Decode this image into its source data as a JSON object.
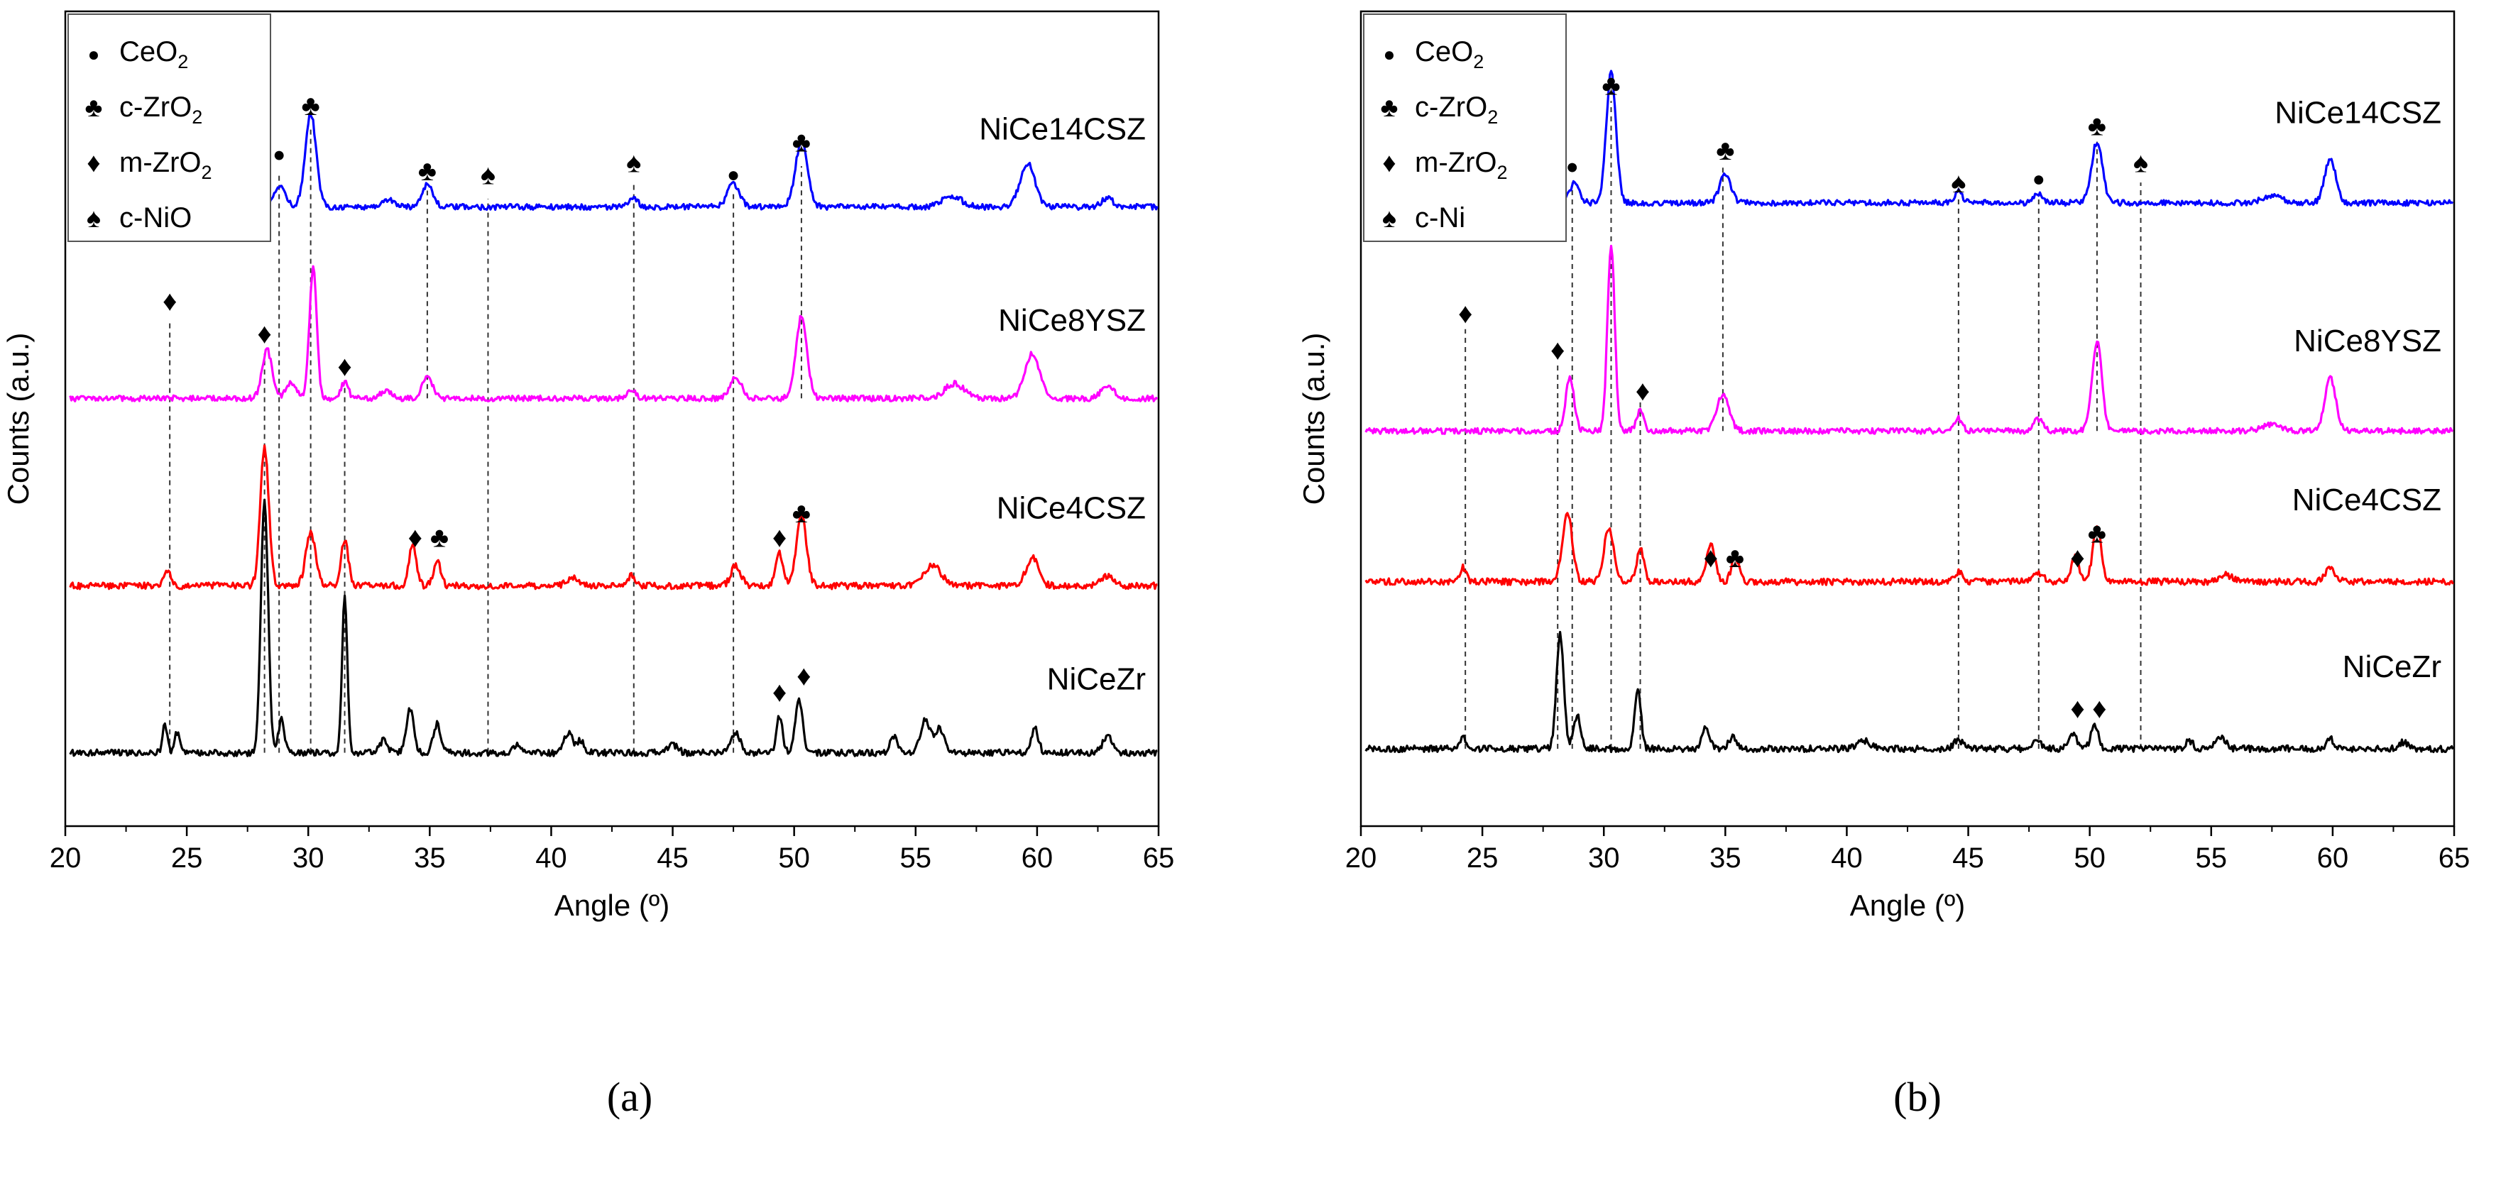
{
  "figure": {
    "panels": [
      {
        "caption": "(a)"
      },
      {
        "caption": "(b)"
      }
    ]
  },
  "chart_data": [
    {
      "type": "line",
      "panel": "(a)",
      "title": "",
      "xlabel": "Angle (º)",
      "ylabel": "Counts (a.u.)",
      "xlim": [
        20,
        65
      ],
      "xticks": [
        20,
        25,
        30,
        35,
        40,
        45,
        50,
        55,
        60,
        65
      ],
      "ylim": [
        0,
        100
      ],
      "yticks_shown": false,
      "grid": false,
      "legend": {
        "position": "top-left",
        "entries": [
          {
            "symbol": "●",
            "label": "CeO",
            "sub": "2"
          },
          {
            "symbol": "♣",
            "label": "c-ZrO",
            "sub": "2"
          },
          {
            "symbol": "♦",
            "label": "m-ZrO",
            "sub": "2"
          },
          {
            "symbol": "♠",
            "label": "c-NiO",
            "sub": ""
          }
        ]
      },
      "series": [
        {
          "name": "NiCe14CSZ",
          "color": "#0000ff",
          "baseline": 76,
          "noise": 0.35,
          "peaks": [
            [
              28.8,
              2.5,
              0.5
            ],
            [
              30.1,
              11.5,
              0.45
            ],
            [
              33.3,
              0.9,
              0.5
            ],
            [
              34.9,
              2.8,
              0.45
            ],
            [
              43.4,
              1.0,
              0.35
            ],
            [
              47.5,
              2.8,
              0.5
            ],
            [
              50.3,
              8.0,
              0.5
            ],
            [
              56.5,
              1.3,
              0.8
            ],
            [
              59.6,
              5.4,
              0.6
            ],
            [
              62.9,
              1.0,
              0.5
            ]
          ]
        },
        {
          "name": "NiCe8YSZ",
          "color": "#ff00ff",
          "baseline": 52.5,
          "noise": 0.35,
          "peaks": [
            [
              28.3,
              6.0,
              0.4
            ],
            [
              29.3,
              2.0,
              0.4
            ],
            [
              30.2,
              16.0,
              0.3
            ],
            [
              31.5,
              2.0,
              0.3
            ],
            [
              33.2,
              1.0,
              0.4
            ],
            [
              34.9,
              2.5,
              0.45
            ],
            [
              43.3,
              1.2,
              0.35
            ],
            [
              47.6,
              2.5,
              0.5
            ],
            [
              50.3,
              10.0,
              0.45
            ],
            [
              56.6,
              1.8,
              0.8
            ],
            [
              59.8,
              5.5,
              0.6
            ],
            [
              62.9,
              1.5,
              0.5
            ]
          ]
        },
        {
          "name": "NiCe4CSZ",
          "color": "#ff0000",
          "baseline": 29.5,
          "noise": 0.4,
          "peaks": [
            [
              24.2,
              2.0,
              0.25
            ],
            [
              28.2,
              17.0,
              0.35
            ],
            [
              30.1,
              6.5,
              0.4
            ],
            [
              31.5,
              5.5,
              0.3
            ],
            [
              34.3,
              5.0,
              0.3
            ],
            [
              35.3,
              3.0,
              0.3
            ],
            [
              40.9,
              1.0,
              0.5
            ],
            [
              43.3,
              1.2,
              0.3
            ],
            [
              47.6,
              2.5,
              0.4
            ],
            [
              49.4,
              4.0,
              0.3
            ],
            [
              50.3,
              9.0,
              0.4
            ],
            [
              55.7,
              2.5,
              0.7
            ],
            [
              59.8,
              3.5,
              0.5
            ],
            [
              62.9,
              1.2,
              0.5
            ]
          ]
        },
        {
          "name": "NiCeZr",
          "color": "#000000",
          "baseline": 9,
          "noise": 0.4,
          "peaks": [
            [
              24.1,
              3.5,
              0.2
            ],
            [
              24.6,
              2.5,
              0.2
            ],
            [
              28.2,
              31.0,
              0.3
            ],
            [
              28.9,
              4.0,
              0.25
            ],
            [
              31.5,
              19.0,
              0.22
            ],
            [
              33.1,
              1.5,
              0.3
            ],
            [
              34.2,
              5.5,
              0.3
            ],
            [
              35.3,
              3.5,
              0.3
            ],
            [
              38.6,
              1.0,
              0.3
            ],
            [
              40.7,
              2.5,
              0.35
            ],
            [
              41.2,
              1.5,
              0.3
            ],
            [
              45.0,
              1.0,
              0.4
            ],
            [
              47.6,
              2.5,
              0.35
            ],
            [
              49.4,
              4.5,
              0.25
            ],
            [
              50.2,
              6.5,
              0.3
            ],
            [
              54.1,
              2.0,
              0.3
            ],
            [
              55.4,
              4.0,
              0.4
            ],
            [
              56.0,
              3.0,
              0.4
            ],
            [
              59.9,
              3.0,
              0.3
            ],
            [
              62.9,
              2.0,
              0.4
            ]
          ]
        }
      ],
      "annotations": [
        {
          "symbol": "●",
          "x": 28.8,
          "y": 82.5
        },
        {
          "symbol": "♣",
          "x": 30.1,
          "y": 88.5
        },
        {
          "symbol": "♣",
          "x": 34.9,
          "y": 80.5
        },
        {
          "symbol": "♠",
          "x": 37.4,
          "y": 80.0
        },
        {
          "symbol": "♠",
          "x": 43.4,
          "y": 81.5
        },
        {
          "symbol": "●",
          "x": 47.5,
          "y": 80.0
        },
        {
          "symbol": "♣",
          "x": 50.3,
          "y": 84.0
        },
        {
          "symbol": "♦",
          "x": 24.3,
          "y": 64.5
        },
        {
          "symbol": "♦",
          "x": 28.2,
          "y": 60.5
        },
        {
          "symbol": "♦",
          "x": 31.5,
          "y": 56.5
        },
        {
          "symbol": "♦",
          "x": 34.4,
          "y": 35.5
        },
        {
          "symbol": "♣",
          "x": 35.4,
          "y": 35.5
        },
        {
          "symbol": "♦",
          "x": 49.4,
          "y": 35.5
        },
        {
          "symbol": "♣",
          "x": 50.3,
          "y": 38.5
        },
        {
          "symbol": "♦",
          "x": 49.4,
          "y": 16.5
        },
        {
          "symbol": "♦",
          "x": 50.4,
          "y": 18.5
        }
      ],
      "reference_lines": [
        {
          "x": 24.3,
          "y_bottom": 9,
          "y_top": 62
        },
        {
          "x": 28.2,
          "y_bottom": 9,
          "y_top": 58
        },
        {
          "x": 28.8,
          "y_bottom": 9,
          "y_top": 80
        },
        {
          "x": 30.1,
          "y_bottom": 9,
          "y_top": 86
        },
        {
          "x": 31.5,
          "y_bottom": 9,
          "y_top": 54
        },
        {
          "x": 34.9,
          "y_bottom": 52.5,
          "y_top": 78
        },
        {
          "x": 37.4,
          "y_bottom": 9,
          "y_top": 77
        },
        {
          "x": 43.4,
          "y_bottom": 9,
          "y_top": 79
        },
        {
          "x": 47.5,
          "y_bottom": 9,
          "y_top": 78
        },
        {
          "x": 50.3,
          "y_bottom": 52.5,
          "y_top": 81
        }
      ]
    },
    {
      "type": "line",
      "panel": "(b)",
      "title": "",
      "xlabel": "Angle (º)",
      "ylabel": "Counts (a.u.)",
      "xlim": [
        20,
        65
      ],
      "xticks": [
        20,
        25,
        30,
        35,
        40,
        45,
        50,
        55,
        60,
        65
      ],
      "ylim": [
        0,
        100
      ],
      "yticks_shown": false,
      "grid": false,
      "legend": {
        "position": "top-left",
        "entries": [
          {
            "symbol": "●",
            "label": "CeO",
            "sub": "2"
          },
          {
            "symbol": "♣",
            "label": "c-ZrO",
            "sub": "2"
          },
          {
            "symbol": "♦",
            "label": "m-ZrO",
            "sub": "2"
          },
          {
            "symbol": "♠",
            "label": "c-Ni",
            "sub": ""
          }
        ]
      },
      "series": [
        {
          "name": "NiCe14CSZ",
          "color": "#0000ff",
          "baseline": 76.5,
          "noise": 0.35,
          "peaks": [
            [
              28.8,
              2.5,
              0.4
            ],
            [
              30.3,
              16.0,
              0.4
            ],
            [
              35.0,
              3.5,
              0.45
            ],
            [
              44.6,
              1.5,
              0.3
            ],
            [
              47.9,
              1.2,
              0.35
            ],
            [
              50.3,
              7.5,
              0.45
            ],
            [
              57.5,
              0.8,
              0.8
            ],
            [
              59.9,
              5.5,
              0.45
            ]
          ]
        },
        {
          "name": "NiCe8YSZ",
          "color": "#ff00ff",
          "baseline": 48.5,
          "noise": 0.35,
          "peaks": [
            [
              28.6,
              6.5,
              0.35
            ],
            [
              30.3,
              23.0,
              0.3
            ],
            [
              31.5,
              2.5,
              0.3
            ],
            [
              34.9,
              4.5,
              0.5
            ],
            [
              44.6,
              1.5,
              0.3
            ],
            [
              47.9,
              1.5,
              0.4
            ],
            [
              50.3,
              11.0,
              0.4
            ],
            [
              57.5,
              0.8,
              0.8
            ],
            [
              59.9,
              6.5,
              0.45
            ]
          ]
        },
        {
          "name": "NiCe4CSZ",
          "color": "#ff0000",
          "baseline": 30,
          "noise": 0.4,
          "peaks": [
            [
              24.2,
              1.8,
              0.25
            ],
            [
              28.5,
              8.5,
              0.4
            ],
            [
              30.2,
              6.5,
              0.4
            ],
            [
              31.5,
              4.0,
              0.3
            ],
            [
              34.4,
              4.5,
              0.35
            ],
            [
              35.4,
              3.0,
              0.3
            ],
            [
              44.6,
              1.2,
              0.35
            ],
            [
              47.9,
              1.0,
              0.4
            ],
            [
              49.4,
              3.0,
              0.3
            ],
            [
              50.3,
              6.5,
              0.35
            ],
            [
              55.6,
              0.8,
              0.6
            ],
            [
              59.9,
              1.8,
              0.4
            ]
          ]
        },
        {
          "name": "NiCeZr",
          "color": "#000000",
          "baseline": 9.5,
          "noise": 0.4,
          "peaks": [
            [
              24.2,
              1.5,
              0.25
            ],
            [
              28.2,
              14.0,
              0.3
            ],
            [
              28.9,
              4.0,
              0.3
            ],
            [
              31.4,
              7.5,
              0.25
            ],
            [
              34.2,
              2.5,
              0.3
            ],
            [
              35.3,
              1.5,
              0.3
            ],
            [
              40.7,
              1.0,
              0.5
            ],
            [
              44.6,
              1.0,
              0.4
            ],
            [
              47.8,
              1.0,
              0.4
            ],
            [
              49.3,
              2.0,
              0.3
            ],
            [
              50.2,
              3.0,
              0.3
            ],
            [
              54.1,
              1.0,
              0.3
            ],
            [
              55.4,
              1.5,
              0.4
            ],
            [
              59.9,
              1.2,
              0.3
            ],
            [
              62.9,
              0.8,
              0.4
            ]
          ]
        }
      ],
      "annotations": [
        {
          "symbol": "●",
          "x": 28.7,
          "y": 81.0
        },
        {
          "symbol": "♣",
          "x": 30.3,
          "y": 91.0
        },
        {
          "symbol": "♣",
          "x": 35.0,
          "y": 83.0
        },
        {
          "symbol": "♠",
          "x": 44.6,
          "y": 79.0
        },
        {
          "symbol": "●",
          "x": 47.9,
          "y": 79.5
        },
        {
          "symbol": "♣",
          "x": 50.3,
          "y": 86.0
        },
        {
          "symbol": "♠",
          "x": 52.1,
          "y": 81.5
        },
        {
          "symbol": "♦",
          "x": 24.3,
          "y": 63.0
        },
        {
          "symbol": "♦",
          "x": 28.1,
          "y": 58.5
        },
        {
          "symbol": "♦",
          "x": 31.6,
          "y": 53.5
        },
        {
          "symbol": "♦",
          "x": 34.4,
          "y": 33.0
        },
        {
          "symbol": "♣",
          "x": 35.4,
          "y": 33.0
        },
        {
          "symbol": "♦",
          "x": 49.5,
          "y": 33.0
        },
        {
          "symbol": "♣",
          "x": 50.3,
          "y": 36.0
        },
        {
          "symbol": "♦",
          "x": 49.5,
          "y": 14.5
        },
        {
          "symbol": "♦",
          "x": 50.4,
          "y": 14.5
        }
      ],
      "reference_lines": [
        {
          "x": 24.3,
          "y_bottom": 9.5,
          "y_top": 61
        },
        {
          "x": 28.1,
          "y_bottom": 9.5,
          "y_top": 57
        },
        {
          "x": 28.7,
          "y_bottom": 9.5,
          "y_top": 79
        },
        {
          "x": 30.3,
          "y_bottom": 9.5,
          "y_top": 89
        },
        {
          "x": 31.5,
          "y_bottom": 9.5,
          "y_top": 52
        },
        {
          "x": 34.9,
          "y_bottom": 48.5,
          "y_top": 81
        },
        {
          "x": 44.6,
          "y_bottom": 9.5,
          "y_top": 77
        },
        {
          "x": 47.9,
          "y_bottom": 9.5,
          "y_top": 77
        },
        {
          "x": 50.3,
          "y_bottom": 48.5,
          "y_top": 84
        },
        {
          "x": 52.1,
          "y_bottom": 9.5,
          "y_top": 79
        }
      ]
    }
  ]
}
